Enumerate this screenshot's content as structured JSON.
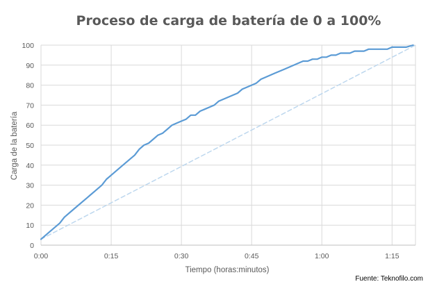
{
  "chart_data": {
    "type": "line",
    "title": "Proceso de carga de batería de 0 a 100%",
    "xlabel": "Tiempo (horas:minutos)",
    "ylabel": "Carga de la batería",
    "xlim": [
      0,
      80
    ],
    "ylim": [
      0,
      100
    ],
    "x_tick_values": [
      0,
      15,
      30,
      45,
      60,
      75
    ],
    "x_tick_labels": [
      "0:00",
      "0:15",
      "0:30",
      "0:45",
      "1:00",
      "1:15"
    ],
    "y_ticks": [
      0,
      10,
      20,
      30,
      40,
      50,
      60,
      70,
      80,
      90,
      100
    ],
    "grid": true,
    "source": "Fuente: Teknofilo.com",
    "series": [
      {
        "color": "#5b9bd5",
        "style": "solid",
        "x": [
          0,
          2,
          4,
          5,
          6.5,
          8,
          10,
          12,
          13,
          14,
          15,
          17,
          19,
          20,
          21,
          22,
          23,
          24,
          25,
          26,
          27,
          28,
          29,
          30,
          31,
          32,
          33,
          34,
          35,
          37,
          38,
          40,
          41,
          42,
          43,
          44,
          45,
          46,
          47,
          48,
          50,
          52,
          55,
          56,
          57,
          58,
          59,
          60,
          61,
          62,
          63,
          64,
          65,
          66,
          67,
          68,
          69,
          70,
          71,
          72,
          73,
          74,
          75,
          76,
          77,
          78,
          79.5
        ],
        "y": [
          3,
          7,
          11,
          14,
          17,
          20,
          24,
          28,
          30,
          33,
          35,
          39,
          43,
          45,
          48,
          50,
          51,
          53,
          55,
          56,
          58,
          60,
          61,
          62,
          63,
          65,
          65,
          67,
          68,
          70,
          72,
          74,
          75,
          76,
          78,
          79,
          80,
          81,
          83,
          84,
          86,
          88,
          91,
          92,
          92,
          93,
          93,
          94,
          94,
          95,
          95,
          96,
          96,
          96,
          97,
          97,
          97,
          98,
          98,
          98,
          98,
          98,
          99,
          99,
          99,
          99,
          100
        ]
      },
      {
        "color": "#bdd7ee",
        "style": "dashed",
        "x": [
          0,
          80
        ],
        "y": [
          3,
          100
        ]
      }
    ]
  }
}
